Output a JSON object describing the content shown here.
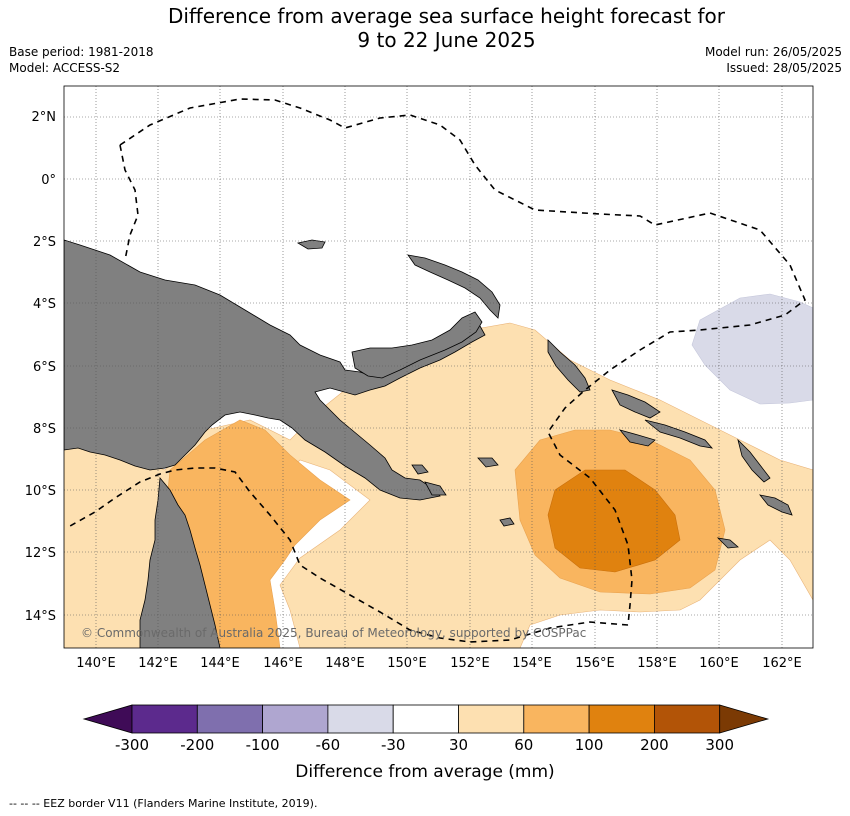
{
  "title": {
    "line1": "Difference from average sea surface height forecast for",
    "line2": "9 to 22 June 2025"
  },
  "meta": {
    "base_period": "Base period: 1981-2018",
    "model": "Model: ACCESS-S2",
    "model_run": "Model run: 26/05/2025",
    "issued": "Issued: 28/05/2025"
  },
  "map": {
    "lat_labels": [
      "2°N",
      "0°",
      "2°S",
      "4°S",
      "6°S",
      "8°S",
      "10°S",
      "12°S",
      "14°S"
    ],
    "lon_labels": [
      "140°E",
      "142°E",
      "144°E",
      "146°E",
      "148°E",
      "150°E",
      "152°E",
      "154°E",
      "156°E",
      "158°E",
      "160°E",
      "162°E"
    ],
    "credit": "© Commonwealth of Australia 2025, Bureau of Meteorology, supported by COSPPac",
    "land_color": "#808080",
    "eez_line": "dashed"
  },
  "colorbar": {
    "title": "Difference from average (mm)",
    "ticks": [
      "-300",
      "-200",
      "-100",
      "-60",
      "-30",
      "30",
      "60",
      "100",
      "200",
      "300"
    ],
    "colors": [
      "#3f0b57",
      "#5c2a8d",
      "#7f6fae",
      "#afa6d0",
      "#d9dae8",
      "#ffffff",
      "#fde0b1",
      "#f9b55f",
      "#e0820f",
      "#b25407",
      "#7b3a04"
    ]
  },
  "footnote": "--  --  -- EEZ border V11 (Flanders Marine Institute, 2019)."
}
